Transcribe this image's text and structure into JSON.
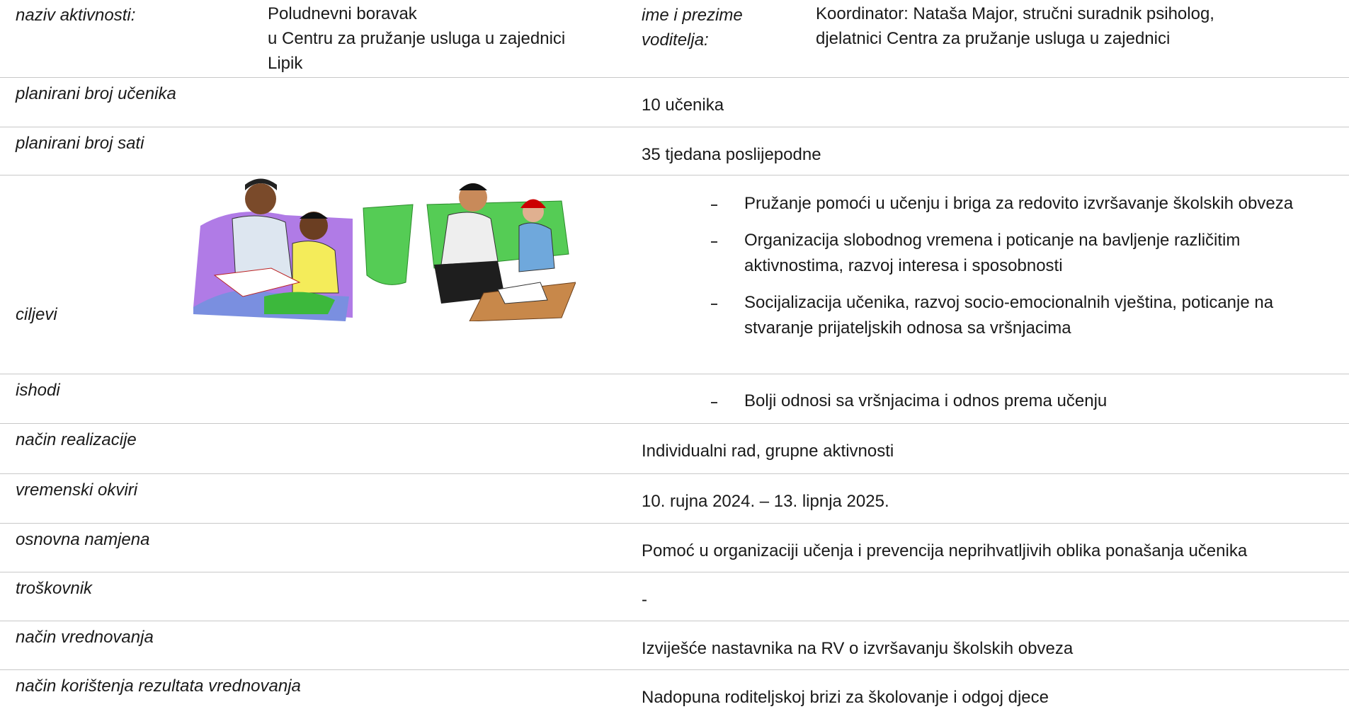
{
  "table": {
    "header": {
      "label": "naziv aktivnosti:",
      "value": [
        "Poludnevni boravak",
        "u Centru za pružanje usluga u zajednici",
        "Lipik"
      ],
      "leader_label": [
        "ime i prezime",
        "voditelja:"
      ],
      "leader": [
        "Koordinator: Nataša Major, stručni suradnik psiholog,",
        "djelatnici Centra za pružanje usluga u zajednici"
      ]
    },
    "rows": [
      {
        "label": "planirani broj učenika",
        "value": "10 učenika"
      },
      {
        "label": "planirani broj sati",
        "value": "35 tjedana poslijepodne"
      },
      {
        "label": "ciljevi",
        "bullets": [
          "Pružanje pomoći u učenju i briga za redovito izvršavanje školskih obveza",
          "Organizacija slobodnog vremena i poticanje na bavljenje različitim aktivnostima, razvoj interesa i sposobnosti",
          "Socijalizacija učenika, razvoj socio-emocionalnih vještina, poticanje na stvaranje prijateljskih odnosa sa vršnjacima"
        ]
      },
      {
        "label": "ishodi",
        "bullets": [
          "Bolji odnosi sa vršnjacima i odnos prema učenju"
        ]
      },
      {
        "label": "način realizacije",
        "value": "Individualni rad, grupne aktivnosti"
      },
      {
        "label": "vremenski okviri",
        "value": "10. rujna 2024. – 13. lipnja 2025."
      },
      {
        "label": "osnovna namjena",
        "value": "Pomoć u organizaciji učenja i prevencija neprihvatljivih oblika ponašanja učenika"
      },
      {
        "label": "troškovnik",
        "value": "-"
      },
      {
        "label": "način vrednovanja",
        "value": "Izviješće nastavnika na RV o izvršavanju školskih obveza"
      },
      {
        "label": "način korištenja rezultata vrednovanja",
        "value": "Nadopuna roditeljskoj brizi za školovanje i odgoj djece"
      }
    ]
  }
}
